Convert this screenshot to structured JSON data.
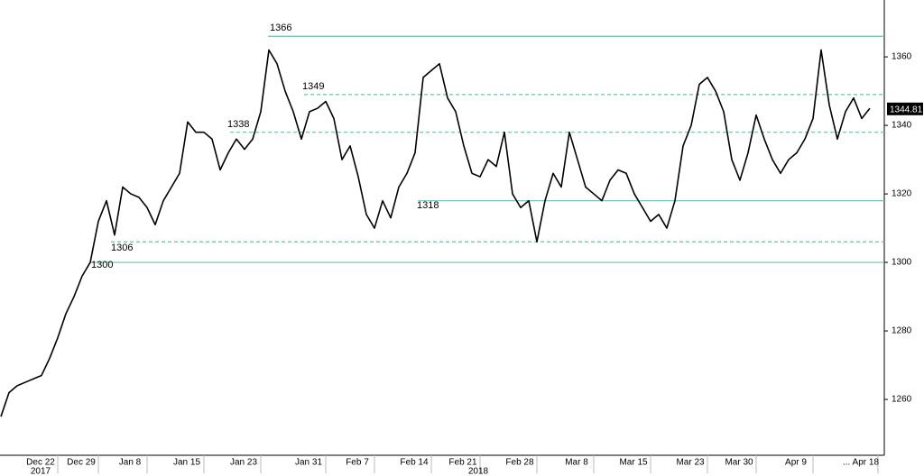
{
  "chart_data": {
    "type": "line",
    "categories": [
      null,
      null,
      null,
      null,
      null,
      "Dec 22",
      null,
      null,
      null,
      null,
      "Dec 29",
      null,
      null,
      null,
      null,
      null,
      "Jan 8",
      null,
      null,
      null,
      null,
      null,
      null,
      "Jan 15",
      null,
      null,
      null,
      null,
      null,
      null,
      "Jan 23",
      null,
      null,
      null,
      null,
      null,
      null,
      null,
      "Jan 31",
      null,
      null,
      null,
      null,
      null,
      "Feb 7",
      null,
      null,
      null,
      null,
      null,
      null,
      "Feb 14",
      null,
      null,
      null,
      null,
      null,
      "Feb 21",
      null,
      null,
      null,
      null,
      null,
      null,
      "Feb 28",
      null,
      null,
      null,
      null,
      null,
      null,
      "Mar 8",
      null,
      null,
      null,
      null,
      null,
      null,
      "Mar 15",
      null,
      null,
      null,
      null,
      null,
      null,
      "Mar 23",
      null,
      null,
      null,
      null,
      null,
      "Mar 30",
      null,
      null,
      null,
      null,
      null,
      null,
      "Apr 9",
      null,
      null,
      null,
      null,
      null,
      null,
      null,
      "... Apr 18",
      null
    ],
    "series": [
      {
        "color": "#000000",
        "values": [
          1255,
          1262,
          1264,
          1265,
          1266,
          1267,
          1272,
          1278,
          1285,
          1290,
          1296,
          1300,
          1312,
          1318,
          1308,
          1322,
          1320,
          1319,
          1316,
          1311,
          1318,
          1322,
          1326,
          1341,
          1338,
          1338,
          1336,
          1327,
          1332,
          1336,
          1333,
          1336,
          1344,
          1362,
          1358,
          1350,
          1344,
          1336,
          1344,
          1345,
          1347,
          1342,
          1330,
          1334,
          1325,
          1314,
          1310,
          1318,
          1313,
          1322,
          1326,
          1332,
          1354,
          1356,
          1358,
          1348,
          1344,
          1334,
          1326,
          1325,
          1330,
          1328,
          1338,
          1320,
          1316,
          1318,
          1306,
          1318,
          1326,
          1322,
          1338,
          1330,
          1322,
          1320,
          1318,
          1324,
          1327,
          1326,
          1320,
          1316,
          1312,
          1314,
          1310,
          1318,
          1334,
          1340,
          1352,
          1354,
          1350,
          1344,
          1330,
          1324,
          1332,
          1343,
          1336,
          1330,
          1326,
          1330,
          1332,
          1336,
          1342,
          1362,
          1346,
          1336,
          1344,
          1348,
          1342,
          1345
        ]
      }
    ],
    "ylim": [
      1243.7,
      1376.6
    ],
    "yticks": [
      1260,
      1280,
      1300,
      1320,
      1340,
      1360
    ],
    "year_labels": [
      "2017",
      "2018"
    ],
    "last_value": 1344.81,
    "levels": [
      {
        "value": 1366,
        "style": "solid"
      },
      {
        "value": 1349,
        "style": "dashed"
      },
      {
        "value": 1338,
        "style": "dashed"
      },
      {
        "value": 1318,
        "style": "solid"
      },
      {
        "value": 1306,
        "style": "dashed"
      },
      {
        "value": 1300,
        "style": "solid"
      }
    ],
    "level_color": "#6dbfae"
  }
}
